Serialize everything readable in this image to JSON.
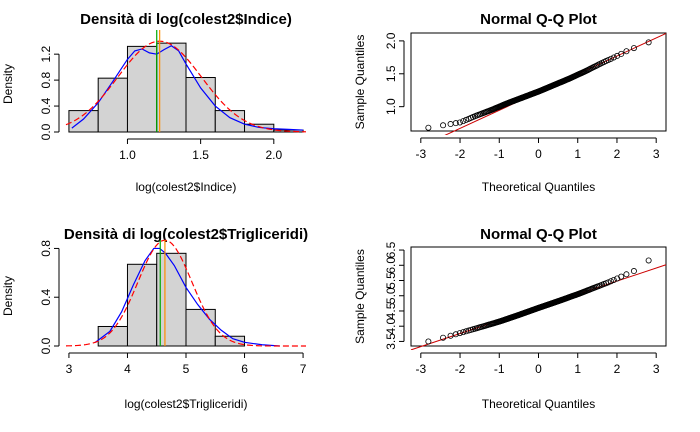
{
  "chart_data": [
    {
      "type": "histogram-density",
      "title": "Densità di log(colest2$Indice)",
      "xlabel": "log(colest2$Indice)",
      "ylabel": "Density",
      "xlim": [
        0.58,
        2.22
      ],
      "ylim": [
        0,
        1.48
      ],
      "xticks": [
        1.0,
        1.5,
        2.0
      ],
      "xtick_labels": [
        "1.0",
        "1.5",
        "2.0"
      ],
      "yticks": [
        0.0,
        0.4,
        0.8,
        1.2
      ],
      "ytick_labels": [
        "0.0",
        "0.4",
        "0.8",
        "1.2"
      ],
      "bins": [
        {
          "start": 0.6,
          "end": 0.8,
          "density": 0.33
        },
        {
          "start": 0.8,
          "end": 1.0,
          "density": 0.83
        },
        {
          "start": 1.0,
          "end": 1.2,
          "density": 1.32
        },
        {
          "start": 1.2,
          "end": 1.4,
          "density": 1.37
        },
        {
          "start": 1.4,
          "end": 1.6,
          "density": 0.84
        },
        {
          "start": 1.6,
          "end": 1.8,
          "density": 0.33
        },
        {
          "start": 1.8,
          "end": 2.0,
          "density": 0.12
        },
        {
          "start": 2.0,
          "end": 2.2,
          "density": 0.03
        }
      ],
      "kernel_density": {
        "x": [
          0.62,
          0.7,
          0.8,
          0.9,
          1.0,
          1.05,
          1.1,
          1.15,
          1.2,
          1.25,
          1.3,
          1.35,
          1.4,
          1.5,
          1.6,
          1.7,
          1.8,
          1.9,
          2.0,
          2.1,
          2.2
        ],
        "y": [
          0.06,
          0.2,
          0.45,
          0.78,
          1.12,
          1.25,
          1.28,
          1.22,
          1.2,
          1.27,
          1.33,
          1.25,
          1.05,
          0.68,
          0.4,
          0.22,
          0.12,
          0.07,
          0.05,
          0.04,
          0.03
        ]
      },
      "normal_fit": {
        "mean": 1.22,
        "sd": 0.285
      },
      "mean_line": 1.22,
      "median_line": 1.2,
      "colors": {
        "histogram_fill": "#d3d3d3",
        "kernel": "#0000ff",
        "normal": "#ff0000",
        "mean": "#ff8c00",
        "median": "#00aa00"
      }
    },
    {
      "type": "qq",
      "title": "Normal Q-Q Plot",
      "xlabel": "Theoretical Quantiles",
      "ylabel": "Sample Quantiles",
      "xlim": [
        -3.25,
        3.25
      ],
      "ylim": [
        0.63,
        2.12
      ],
      "xticks": [
        -3,
        -2,
        -1,
        0,
        1,
        2,
        3
      ],
      "xtick_labels": [
        "-3",
        "-2",
        "-1",
        "0",
        "1",
        "2",
        "3"
      ],
      "yticks": [
        1.0,
        1.5,
        2.0
      ],
      "ytick_labels": [
        "1.0",
        "1.5",
        "2.0"
      ],
      "n_points": 200,
      "sample_quantile_curve": {
        "x": [
          -3.1,
          -2.8,
          -2.6,
          -2.3,
          -2.0,
          -1.6,
          -1.2,
          -0.8,
          -0.4,
          0.0,
          0.4,
          0.8,
          1.2,
          1.6,
          2.0,
          2.3,
          2.6,
          2.9,
          3.1
        ],
        "y": [
          0.67,
          0.68,
          0.7,
          0.73,
          0.76,
          0.86,
          0.95,
          1.05,
          1.14,
          1.23,
          1.33,
          1.43,
          1.54,
          1.66,
          1.77,
          1.86,
          1.93,
          2.0,
          2.07
        ]
      },
      "reference_line": {
        "intercept": 1.22,
        "slope": 0.275
      },
      "colors": {
        "points": "#000000",
        "line": "#cc0000"
      }
    },
    {
      "type": "histogram-density",
      "title": "Densità di log(colest2$Trigliceridi)",
      "xlabel": "log(colest2$Trigliceridi)",
      "ylabel": "Density",
      "xlim": [
        2.95,
        7.05
      ],
      "ylim": [
        0,
        0.82
      ],
      "xticks": [
        3,
        4,
        5,
        6,
        7
      ],
      "xtick_labels": [
        "3",
        "4",
        "5",
        "6",
        "7"
      ],
      "yticks": [
        0.0,
        0.4,
        0.8
      ],
      "ytick_labels": [
        "0.0",
        "0.4",
        "0.8"
      ],
      "bins": [
        {
          "start": 3.5,
          "end": 4.0,
          "density": 0.16
        },
        {
          "start": 4.0,
          "end": 4.5,
          "density": 0.67
        },
        {
          "start": 4.5,
          "end": 5.0,
          "density": 0.76
        },
        {
          "start": 5.0,
          "end": 5.5,
          "density": 0.3
        },
        {
          "start": 5.5,
          "end": 6.0,
          "density": 0.08
        }
      ],
      "kernel_density": {
        "x": [
          3.45,
          3.7,
          3.9,
          4.1,
          4.3,
          4.45,
          4.55,
          4.65,
          4.8,
          5.0,
          5.2,
          5.4,
          5.6,
          5.8,
          6.0,
          6.3,
          6.6
        ],
        "y": [
          0.03,
          0.12,
          0.28,
          0.5,
          0.7,
          0.8,
          0.8,
          0.76,
          0.66,
          0.48,
          0.34,
          0.22,
          0.13,
          0.06,
          0.03,
          0.01,
          0.0
        ],
        "overshoot_top": true
      },
      "normal_fit": {
        "mean": 4.64,
        "sd": 0.46
      },
      "mean_line": 4.64,
      "median_line": 4.56,
      "colors": {
        "histogram_fill": "#d3d3d3",
        "kernel": "#0000ff",
        "normal": "#ff0000",
        "mean": "#ff8c00",
        "median": "#00aa00"
      }
    },
    {
      "type": "qq",
      "title": "Normal Q-Q Plot",
      "xlabel": "Theoretical Quantiles",
      "ylabel": "Sample Quantiles",
      "xlim": [
        -3.25,
        3.25
      ],
      "ylim": [
        3.35,
        6.6
      ],
      "xticks": [
        -3,
        -2,
        -1,
        0,
        1,
        2,
        3
      ],
      "xtick_labels": [
        "-3",
        "-2",
        "-1",
        "0",
        "1",
        "2",
        "3"
      ],
      "yticks": [
        3.5,
        4.5,
        5.5,
        6.5
      ],
      "ytick_labels": [
        "3.5",
        "4.5",
        "5.5",
        "6.5"
      ],
      "extra_ytick_labels": [
        {
          "value": 4.0,
          "label": "4.0"
        },
        {
          "value": 5.0,
          "label": "5.0"
        },
        {
          "value": 6.0,
          "label": "6.0"
        }
      ],
      "n_points": 200,
      "sample_quantile_curve": {
        "x": [
          -3.1,
          -2.8,
          -2.5,
          -2.2,
          -1.8,
          -1.4,
          -1.0,
          -0.5,
          0.0,
          0.5,
          1.0,
          1.4,
          1.8,
          2.2,
          2.5,
          2.8,
          3.1
        ],
        "y": [
          3.4,
          3.5,
          3.6,
          3.7,
          3.85,
          4.0,
          4.15,
          4.37,
          4.6,
          4.82,
          5.05,
          5.25,
          5.45,
          5.68,
          5.85,
          6.15,
          6.5
        ]
      },
      "reference_line": {
        "intercept": 4.62,
        "slope": 0.43
      },
      "colors": {
        "points": "#000000",
        "line": "#cc0000"
      }
    }
  ]
}
